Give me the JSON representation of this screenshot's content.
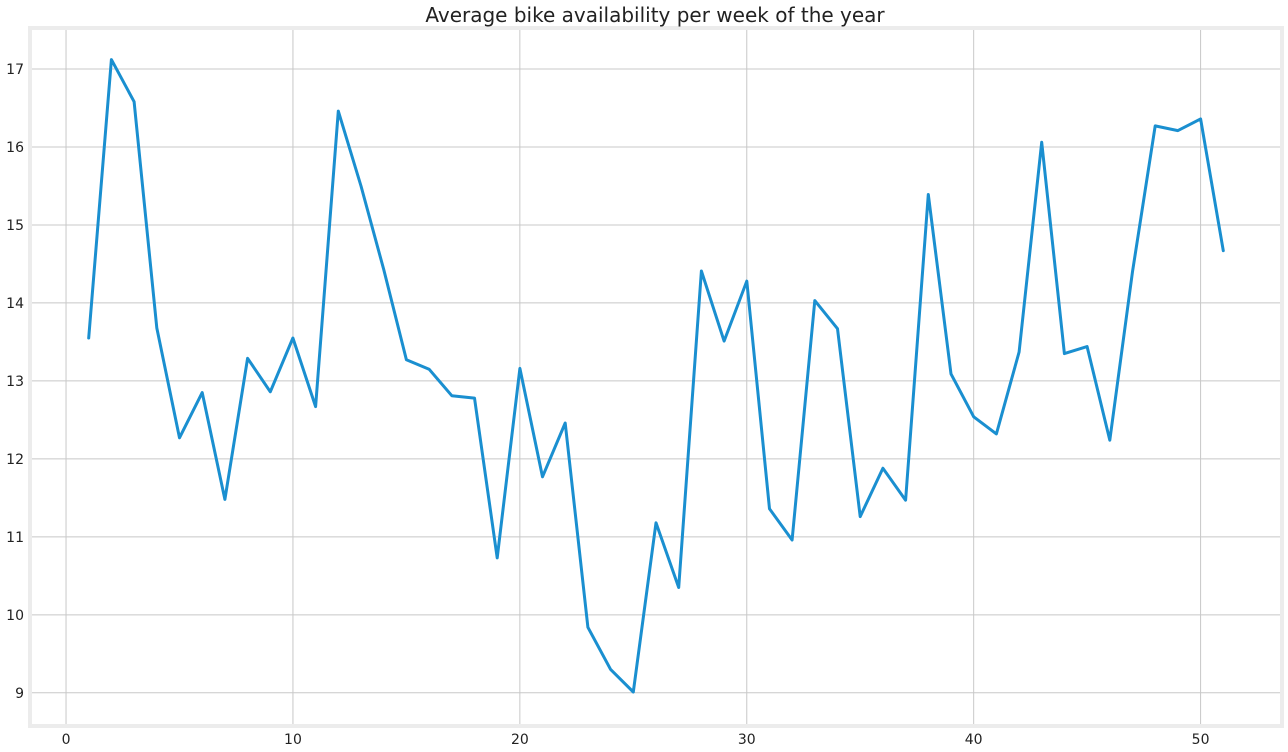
{
  "chart_data": {
    "type": "line",
    "title": "Average bike availability per week of the year",
    "xlabel": "",
    "ylabel": "",
    "xlim": [
      -1.5,
      53.5
    ],
    "ylim": [
      8.6,
      17.5
    ],
    "x_ticks": [
      0,
      10,
      20,
      30,
      40,
      50
    ],
    "y_ticks": [
      9,
      10,
      11,
      12,
      13,
      14,
      15,
      16,
      17
    ],
    "grid": true,
    "line_color": "#1a8fd0",
    "background_color": "#ffffff",
    "frame_color": "#ececec",
    "grid_color": "#c8c8c8",
    "series": [
      {
        "x": [
          1,
          2,
          3,
          4,
          5,
          6,
          7,
          8,
          9,
          10,
          11,
          12,
          13,
          14,
          15,
          16,
          17,
          18,
          19,
          20,
          21,
          22,
          23,
          24,
          25,
          26,
          27,
          28,
          29,
          30,
          31,
          32,
          33,
          34,
          35,
          36,
          37,
          38,
          39,
          40,
          41,
          42,
          43,
          44,
          45,
          46,
          47,
          48,
          49,
          50,
          51
        ],
        "values": [
          13.55,
          17.12,
          16.58,
          13.68,
          12.27,
          12.85,
          11.48,
          13.29,
          12.86,
          13.55,
          12.67,
          16.46,
          15.5,
          14.43,
          13.27,
          13.15,
          12.81,
          12.78,
          10.73,
          13.16,
          11.77,
          12.46,
          9.84,
          9.3,
          9.01,
          11.18,
          10.35,
          14.41,
          13.51,
          14.28,
          11.36,
          10.96,
          14.03,
          13.67,
          11.26,
          11.88,
          11.47,
          15.39,
          13.09,
          12.54,
          12.32,
          13.37,
          16.06,
          13.35,
          13.44,
          12.24,
          14.4,
          16.27,
          16.21,
          16.36,
          14.67
        ]
      }
    ]
  }
}
